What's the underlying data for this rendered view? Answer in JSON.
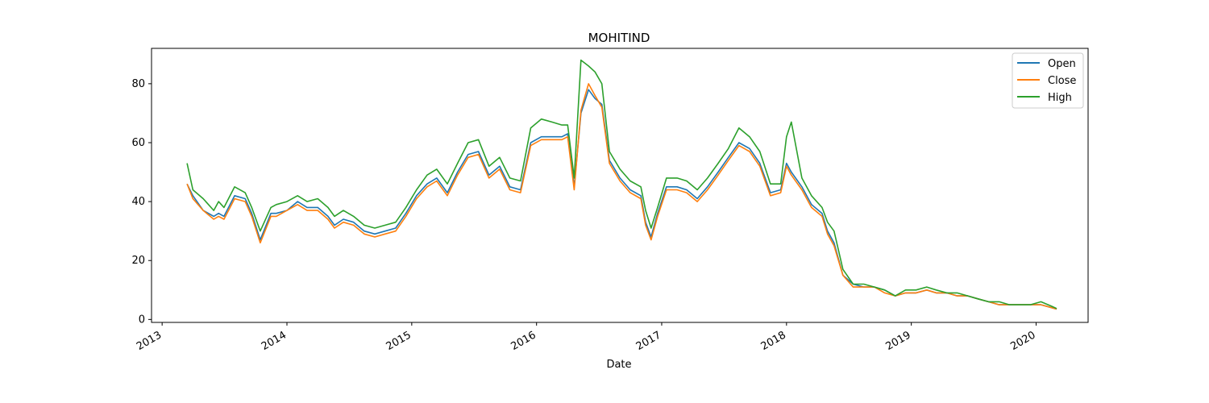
{
  "chart_data": {
    "type": "line",
    "title": "MOHITIND",
    "xlabel": "Date",
    "ylabel": "",
    "xlim": [
      "2012-12-01",
      "2020-06-01"
    ],
    "ylim": [
      -1,
      92
    ],
    "x_tick_labels": [
      "2013",
      "2014",
      "2015",
      "2016",
      "2017",
      "2018",
      "2019",
      "2020"
    ],
    "y_tick_labels": [
      "0",
      "20",
      "40",
      "60",
      "80"
    ],
    "y_ticks": [
      0,
      20,
      40,
      60,
      80
    ],
    "grid": false,
    "legend_position": "top-right",
    "x": [
      "2013-03-15",
      "2013-04-01",
      "2013-05-01",
      "2013-06-01",
      "2013-06-15",
      "2013-07-01",
      "2013-08-01",
      "2013-09-01",
      "2013-09-20",
      "2013-10-15",
      "2013-11-15",
      "2013-12-01",
      "2014-01-01",
      "2014-02-01",
      "2014-03-01",
      "2014-04-01",
      "2014-05-01",
      "2014-05-20",
      "2014-06-15",
      "2014-07-15",
      "2014-08-15",
      "2014-09-15",
      "2014-10-15",
      "2014-11-15",
      "2014-12-15",
      "2015-01-15",
      "2015-02-15",
      "2015-03-15",
      "2015-04-15",
      "2015-05-15",
      "2015-06-15",
      "2015-07-15",
      "2015-08-15",
      "2015-09-15",
      "2015-10-15",
      "2015-11-15",
      "2015-12-15",
      "2016-01-15",
      "2016-02-15",
      "2016-03-15",
      "2016-04-01",
      "2016-04-20",
      "2016-05-10",
      "2016-06-01",
      "2016-06-20",
      "2016-07-10",
      "2016-08-01",
      "2016-09-01",
      "2016-10-01",
      "2016-11-01",
      "2016-11-15",
      "2016-12-01",
      "2016-12-20",
      "2017-01-15",
      "2017-02-15",
      "2017-03-15",
      "2017-04-15",
      "2017-05-15",
      "2017-06-15",
      "2017-07-15",
      "2017-08-15",
      "2017-09-15",
      "2017-10-15",
      "2017-11-15",
      "2017-12-15",
      "2018-01-01",
      "2018-01-15",
      "2018-02-15",
      "2018-03-15",
      "2018-04-15",
      "2018-05-01",
      "2018-05-20",
      "2018-06-15",
      "2018-07-15",
      "2018-08-15",
      "2018-09-15",
      "2018-10-15",
      "2018-11-15",
      "2018-12-15",
      "2019-01-15",
      "2019-02-15",
      "2019-03-15",
      "2019-04-15",
      "2019-05-15",
      "2019-06-15",
      "2019-07-15",
      "2019-08-15",
      "2019-09-15",
      "2019-10-15",
      "2019-11-15",
      "2019-12-15",
      "2020-01-15",
      "2020-02-15",
      "2020-03-01"
    ],
    "series": [
      {
        "name": "Open",
        "color": "#1f77b4",
        "values": [
          46,
          42,
          37,
          35,
          36,
          35,
          42,
          41,
          36,
          27,
          36,
          36,
          37,
          40,
          38,
          38,
          35,
          32,
          34,
          33,
          30,
          29,
          30,
          31,
          36,
          42,
          46,
          48,
          43,
          50,
          56,
          57,
          49,
          52,
          45,
          44,
          60,
          62,
          62,
          62,
          63,
          45,
          70,
          78,
          75,
          73,
          54,
          48,
          44,
          42,
          33,
          28,
          36,
          45,
          45,
          44,
          41,
          45,
          50,
          55,
          60,
          58,
          53,
          43,
          44,
          53,
          50,
          45,
          39,
          36,
          30,
          26,
          15,
          12,
          11,
          11,
          10,
          8,
          9,
          9,
          10,
          9,
          9,
          8,
          8,
          7,
          6,
          5,
          5,
          5,
          5,
          5,
          4,
          3.5
        ]
      },
      {
        "name": "Close",
        "color": "#ff7f0e",
        "values": [
          46,
          41,
          37,
          34,
          35,
          34,
          41,
          40,
          35,
          26,
          35,
          35,
          37,
          39,
          37,
          37,
          34,
          31,
          33,
          32,
          29,
          28,
          29,
          30,
          35,
          41,
          45,
          47,
          42,
          49,
          55,
          56,
          48,
          51,
          44,
          43,
          59,
          61,
          61,
          61,
          62,
          44,
          71,
          80,
          76,
          72,
          53,
          47,
          43,
          41,
          32,
          27,
          35,
          44,
          44,
          43,
          40,
          44,
          49,
          54,
          59,
          57,
          52,
          42,
          43,
          52,
          49,
          44,
          38,
          35,
          29,
          25,
          15,
          11,
          11,
          11,
          9,
          8,
          9,
          9,
          10,
          9,
          9,
          8,
          8,
          7,
          6,
          5,
          5,
          5,
          5,
          5,
          4,
          3.5
        ]
      },
      {
        "name": "High",
        "color": "#2ca02c",
        "values": [
          53,
          44,
          41,
          37,
          40,
          38,
          45,
          43,
          38,
          30,
          38,
          39,
          40,
          42,
          40,
          41,
          38,
          35,
          37,
          35,
          32,
          31,
          32,
          33,
          38,
          44,
          49,
          51,
          46,
          53,
          60,
          61,
          52,
          55,
          48,
          47,
          65,
          68,
          67,
          66,
          66,
          48,
          88,
          86,
          84,
          80,
          57,
          51,
          47,
          45,
          37,
          31,
          38,
          48,
          48,
          47,
          44,
          48,
          53,
          58,
          65,
          62,
          57,
          46,
          46,
          62,
          67,
          48,
          42,
          38,
          33,
          30,
          17,
          12,
          12,
          11,
          10,
          8,
          10,
          10,
          11,
          10,
          9,
          9,
          8,
          7,
          6,
          6,
          5,
          5,
          5,
          6,
          4.5,
          3.7
        ]
      }
    ]
  },
  "legend": {
    "items": [
      {
        "label": "Open",
        "color": "#1f77b4"
      },
      {
        "label": "Close",
        "color": "#ff7f0e"
      },
      {
        "label": "High",
        "color": "#2ca02c"
      }
    ]
  }
}
